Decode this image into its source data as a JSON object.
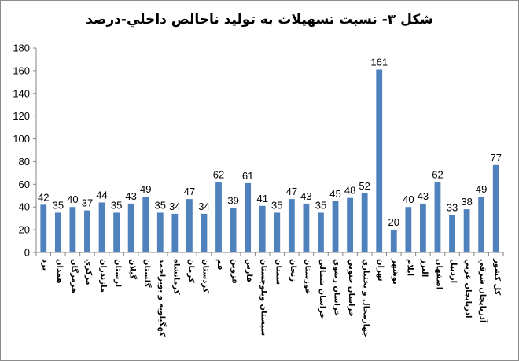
{
  "chart_data": {
    "type": "bar",
    "title": "شکل ۳- نسبت تسهیلات به تولید ناخالص داخلي-درصد",
    "ylim": [
      0,
      180
    ],
    "yticks": [
      0,
      20,
      40,
      60,
      80,
      100,
      120,
      140,
      160,
      180
    ],
    "grid": false,
    "bar_color": "#4f81bd",
    "categories": [
      "یزد",
      "همدان",
      "هرمزگان",
      "مرکزي",
      "مازندران",
      "لرستان",
      "گيلان",
      "گلستان",
      "کهگيلويه و بويراحمد",
      "کرمانشاه",
      "کرمان",
      "کردستان",
      "قم",
      "قزوين",
      "فارس",
      "سيستان وبلوچستان",
      "سمنان",
      "زنجان",
      "خوزستان",
      "خراسان شمالي",
      "خراسان رضوي",
      "خراسان جنوبي",
      "چهارمحال و بختياري",
      "تهران",
      "بوشهر",
      "ايلام",
      "البرز",
      "اصفهان",
      "اردبيل",
      "آذربايجان غربي",
      "آذربايجان شرقي",
      "کل کشور"
    ],
    "values": [
      42,
      35,
      40,
      37,
      44,
      35,
      43,
      49,
      35,
      34,
      47,
      34,
      62,
      39,
      61,
      41,
      35,
      47,
      43,
      35,
      45,
      48,
      52,
      161,
      20,
      40,
      43,
      62,
      33,
      38,
      49,
      77
    ]
  }
}
